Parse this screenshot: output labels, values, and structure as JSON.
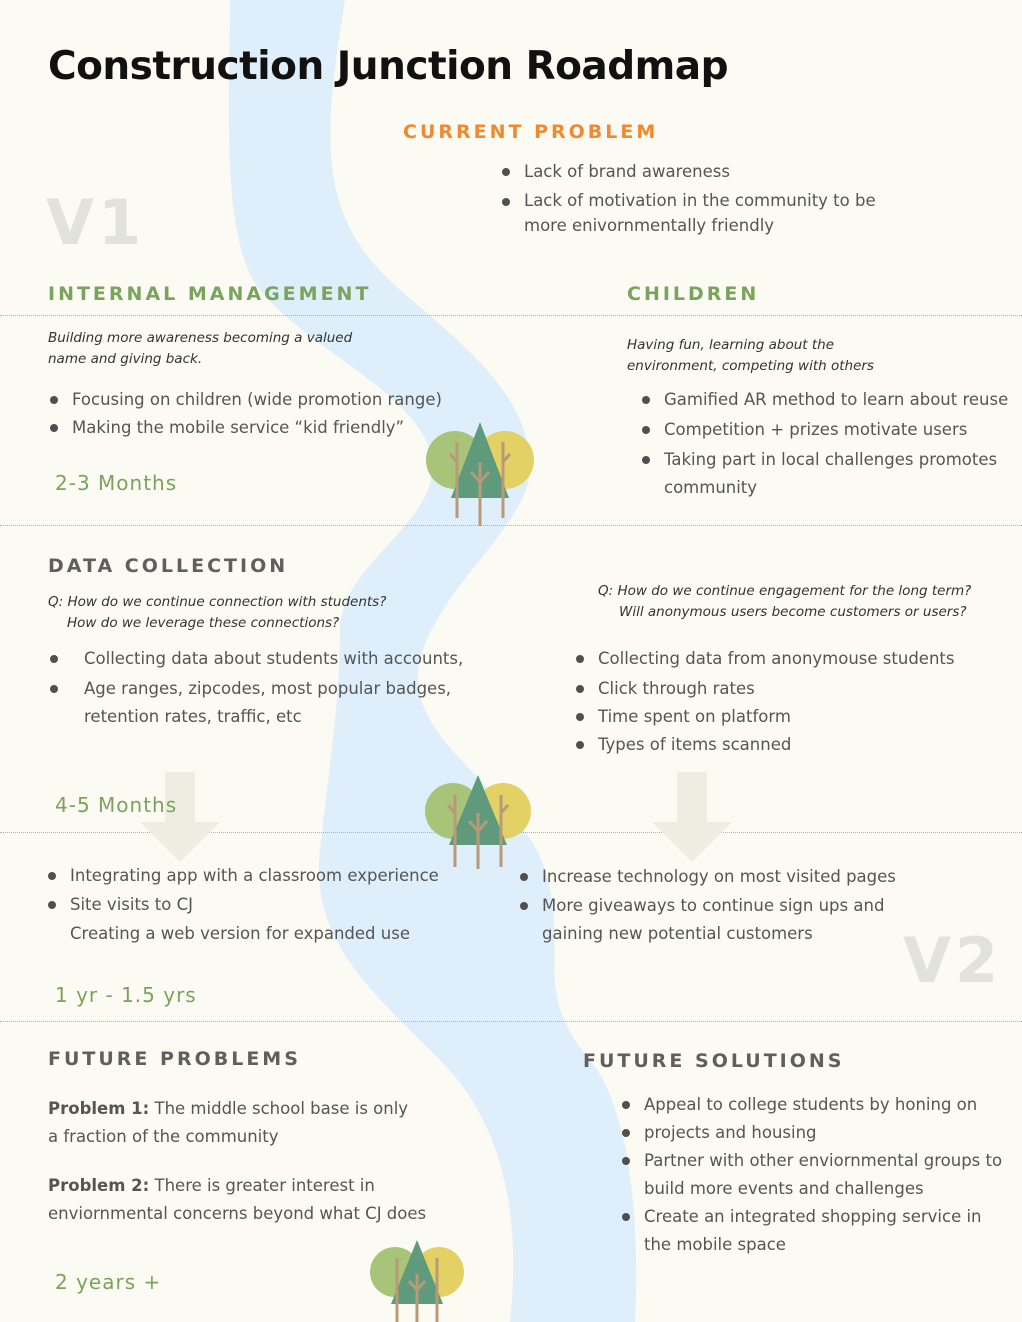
{
  "title": "Construction Junction Roadmap",
  "version_labels": [
    "V1",
    "V2"
  ],
  "current_problem": {
    "heading": "CURRENT PROBLEM",
    "items": [
      "Lack of brand awareness",
      "Lack of motivation in the community to  be more enivornmentally friendly"
    ]
  },
  "internal_management": {
    "heading": "INTERNAL MANAGEMENT",
    "subtitle": "Building more awareness becoming a valued name and giving back.",
    "items": [
      "Focusing on children (wide promotion range)",
      "Making the mobile service “kid friendly”"
    ],
    "timeframe": "2-3 Months"
  },
  "children": {
    "heading": "CHILDREN",
    "subtitle": "Having fun, learning about the environment, competing with others",
    "items": [
      "Gamified AR method to learn about reuse",
      "Competition + prizes motivate users",
      "Taking part in local challenges promotes community"
    ]
  },
  "data_collection": {
    "heading": "DATA COLLECTION",
    "left_questions": [
      "Q: How do we continue connection with students?",
      "How do we leverage these connections?"
    ],
    "left_items": [
      "Collecting data about students with accounts,",
      "Age ranges, zipcodes, most popular badges, retention rates, traffic, etc"
    ],
    "right_questions": [
      "Q: How do we continue engagement for the long term?",
      "Will anonymous users become customers or users?"
    ],
    "right_items": [
      "Collecting data from anonymouse students",
      "Click through rates",
      "Time spent on platform",
      "Types of items scanned"
    ],
    "timeframe": "4-5 Months"
  },
  "next_steps": {
    "left_items": [
      "Integrating app with a classroom experience",
      "Site visits to CJ"
    ],
    "left_extra": "Creating a web version for expanded use",
    "right_items": [
      "Increase technology on most visited pages",
      "More giveaways to continue sign ups and gaining new potential customers"
    ],
    "timeframe": "1 yr - 1.5 yrs"
  },
  "future_problems": {
    "heading": "FUTURE PROBLEMS",
    "problem1_label": "Problem 1:",
    "problem1_text": "The middle school base is only a fraction of the community",
    "problem2_label": "Problem 2:",
    "problem2_text": "There is greater interest in enviornmental concerns beyond what CJ does",
    "timeframe": "2 years +"
  },
  "future_solutions": {
    "heading": "FUTURE SOLUTIONS",
    "items": [
      "Appeal to college students by honing on",
      "projects and housing",
      "Partner with other enviornmental groups to build more events and challenges",
      "Create an integrated shopping service in the mobile space"
    ]
  },
  "colors": {
    "background": "#fbfaf3",
    "river": "#deeefa",
    "accent_orange": "#f08a30",
    "accent_green": "#7aa35c",
    "tree_dark": "#5f9a7c",
    "tree_light": "#a8c478",
    "tree_yellow": "#e3d165"
  }
}
